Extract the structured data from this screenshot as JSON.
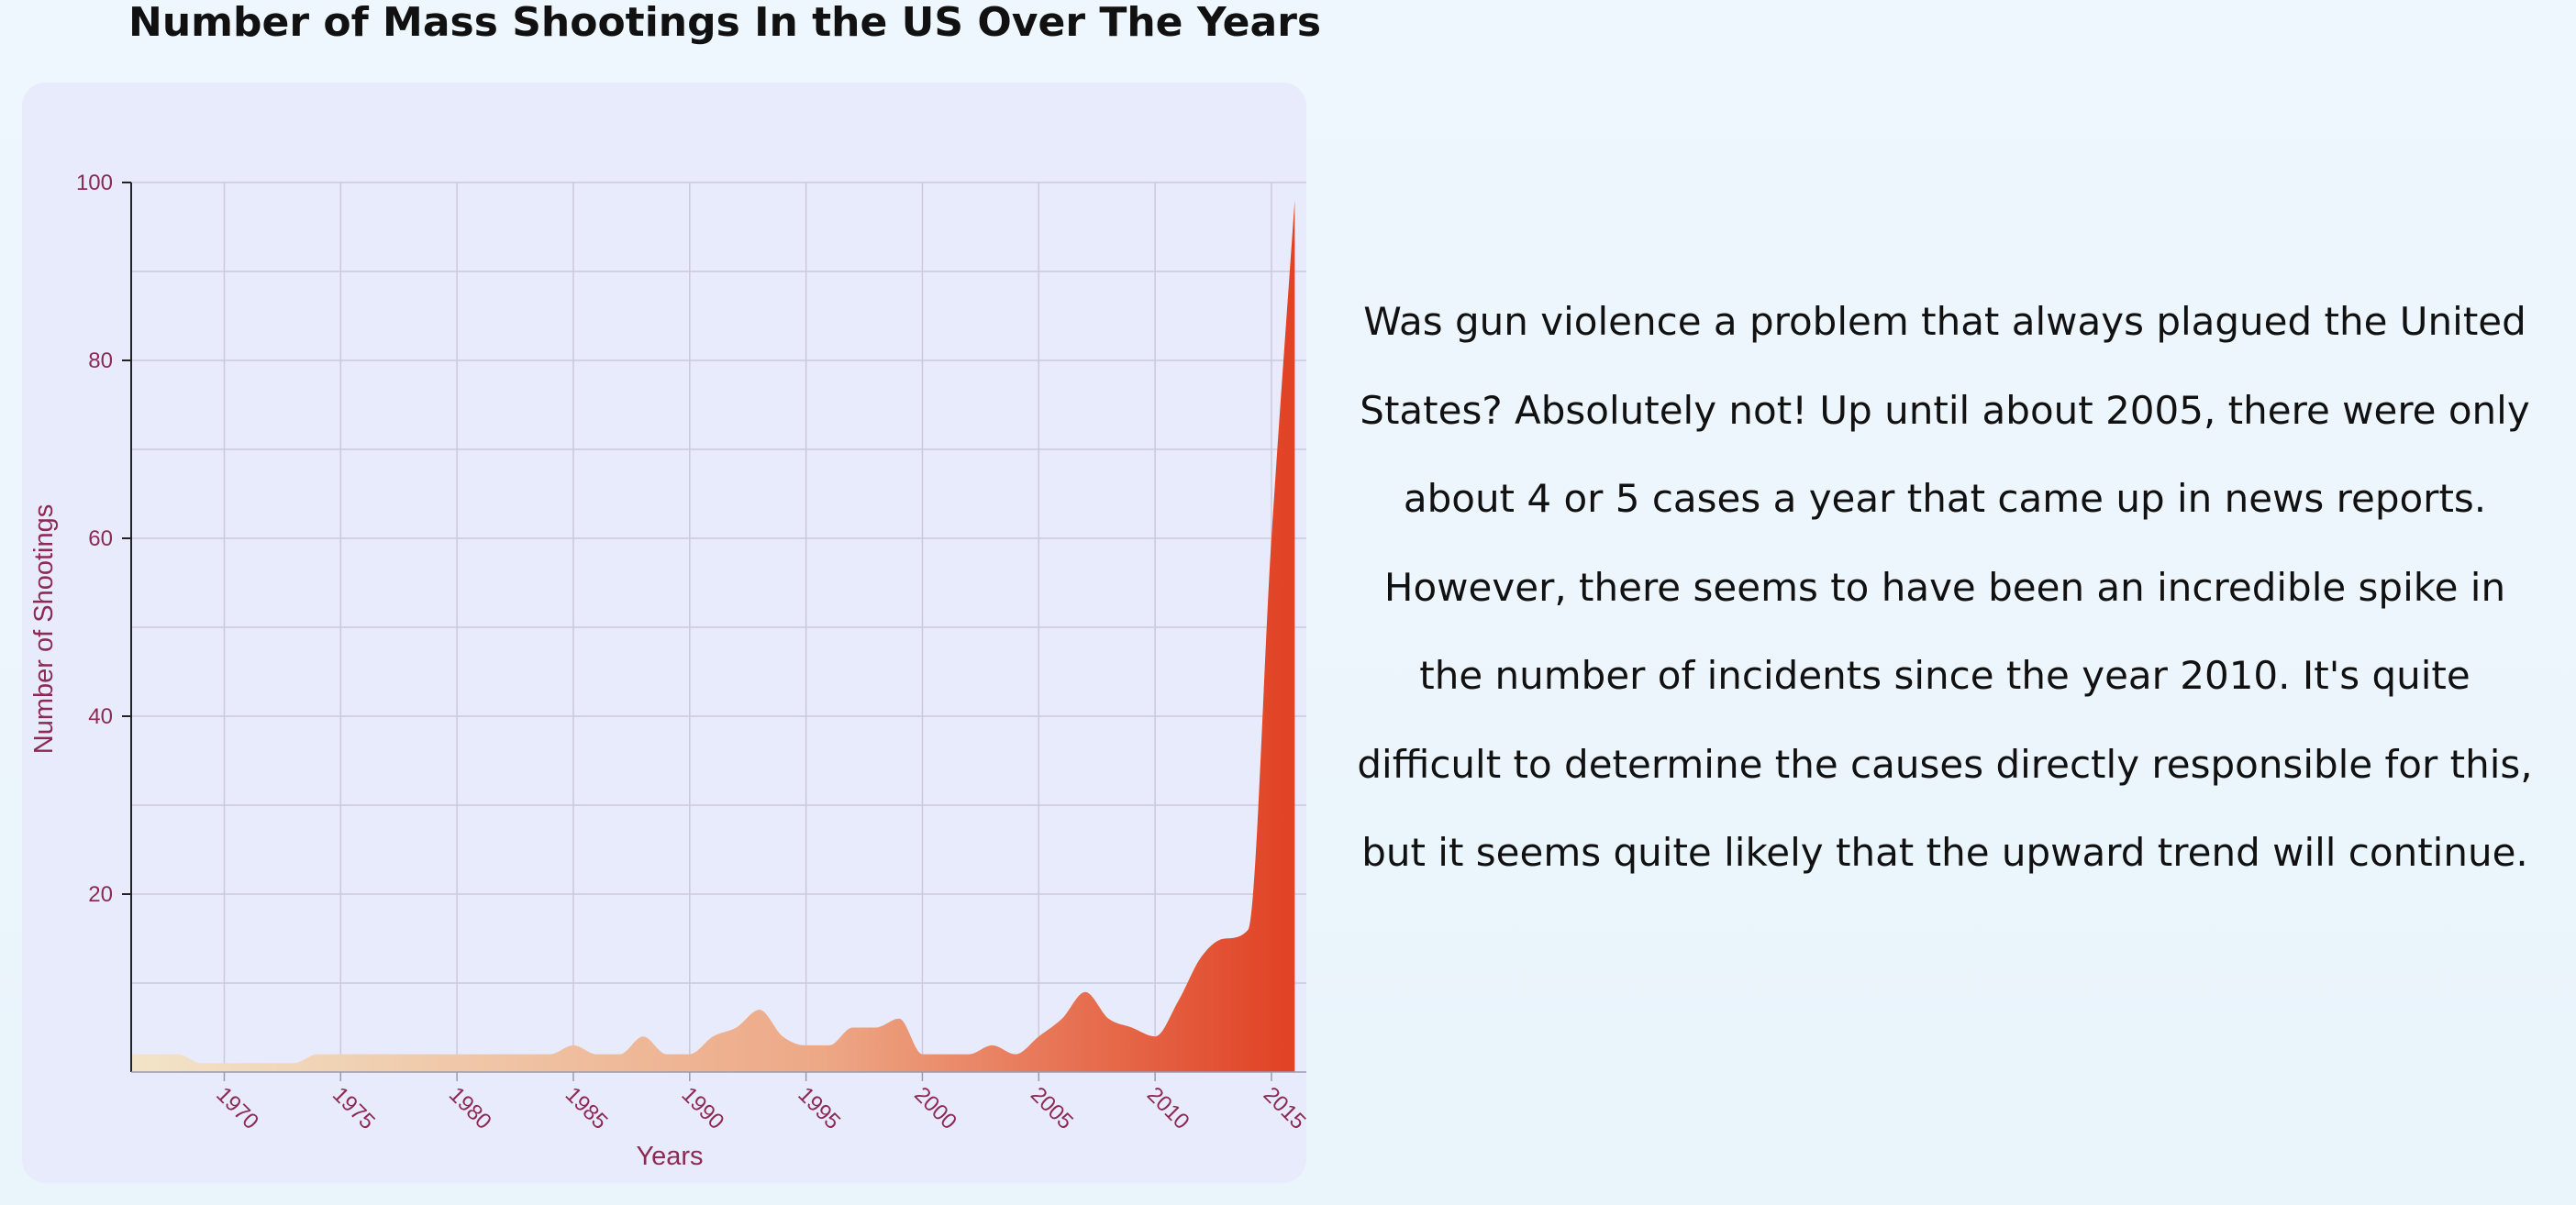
{
  "title": "Number of Mass Shootings In the US Over The Years",
  "description": "Was gun violence a problem that always plagued the United States? Absolutely not! Up until about 2005, there were only about 4 or 5 cases a year that came up in news reports. However, there seems to have been an incredible spike in the number of incidents since the year 2010. It's quite difficult to determine the causes directly responsible for this, but it seems quite likely that the upward trend will continue.",
  "colors": {
    "gradient_start": "#f2e4c8",
    "gradient_mid": "#eda886",
    "gradient_end": "#e14326",
    "axis_text": "#8c2a55",
    "card_background": "#e8ebfb"
  },
  "chart_data": {
    "type": "area",
    "title": "Number of Mass Shootings In the US Over The Years",
    "xlabel": "Years",
    "ylabel": "Number of Shootings",
    "xlim": [
      1966,
      2016.5
    ],
    "ylim": [
      0,
      100
    ],
    "x_ticks": [
      "1970",
      "1975",
      "1980",
      "1985",
      "1990",
      "1995",
      "2000",
      "2005",
      "2010",
      "2015"
    ],
    "y_ticks": [
      "20",
      "40",
      "60",
      "80",
      "100"
    ],
    "grid": true,
    "curve": "smooth",
    "fill": "horizontal gradient, light beige to red-orange",
    "x": [
      1966,
      1967,
      1968,
      1969,
      1970,
      1971,
      1972,
      1973,
      1974,
      1975,
      1976,
      1977,
      1978,
      1979,
      1980,
      1981,
      1982,
      1983,
      1984,
      1985,
      1986,
      1987,
      1988,
      1989,
      1990,
      1991,
      1992,
      1993,
      1994,
      1995,
      1996,
      1997,
      1998,
      1999,
      2000,
      2001,
      2002,
      2003,
      2004,
      2005,
      2006,
      2007,
      2008,
      2009,
      2010,
      2011,
      2012,
      2013,
      2014,
      2015,
      2016
    ],
    "y": [
      2,
      2,
      2,
      1,
      1,
      1,
      1,
      1,
      2,
      2,
      2,
      2,
      2,
      2,
      2,
      2,
      2,
      2,
      2,
      3,
      2,
      2,
      4,
      2,
      2,
      4,
      5,
      7,
      4,
      3,
      3,
      5,
      5,
      6,
      2,
      2,
      2,
      3,
      2,
      4,
      6,
      9,
      6,
      5,
      4,
      8,
      13,
      15,
      16,
      60,
      98
    ]
  }
}
